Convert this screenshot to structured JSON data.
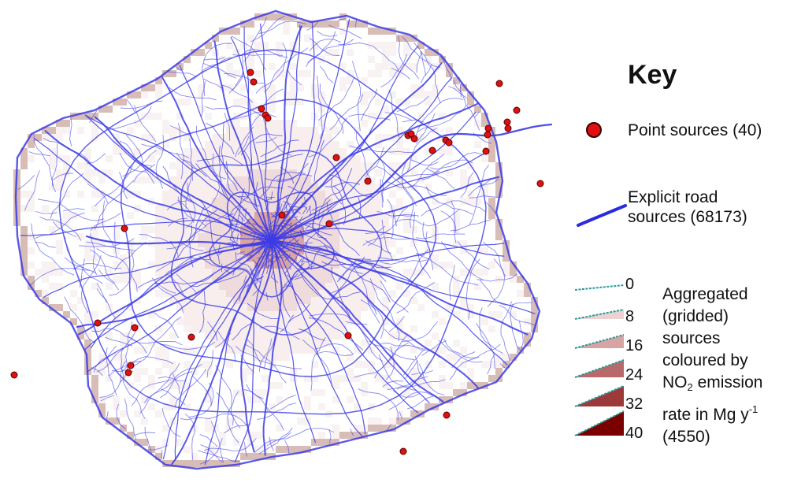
{
  "key": {
    "title": "Key",
    "point_sources_label": "Point sources (40)",
    "road_sources_line1": "Explicit road",
    "road_sources_line2": "sources (68173)",
    "aggregated_lines": [
      "Aggregated",
      "(gridded)",
      "sources",
      "coloured by"
    ],
    "aggregated_no2_prefix": "NO",
    "aggregated_no2_subscript": "2",
    "aggregated_no2_suffix": " emission",
    "aggregated_rate_prefix": "rate in Mg y",
    "aggregated_rate_superscript": "-1",
    "aggregated_count": "(4550)",
    "levels": [
      "0",
      "8",
      "16",
      "24",
      "32",
      "40"
    ]
  },
  "colors": {
    "road": "#3b3be6",
    "point": "#e01010",
    "point_outline": "#5a0000",
    "grid_level_0": "#ffffff",
    "grid_level_8": "#ecd2d2",
    "grid_level_16": "#d8a3a3",
    "grid_level_24": "#b86a6a",
    "grid_level_32": "#9c3a3a",
    "grid_level_40": "#7a0000",
    "legend_edge": "#2a9a9a"
  },
  "map": {
    "point_count": 40,
    "road_count": 68173,
    "grid_cell_count": 4550
  }
}
